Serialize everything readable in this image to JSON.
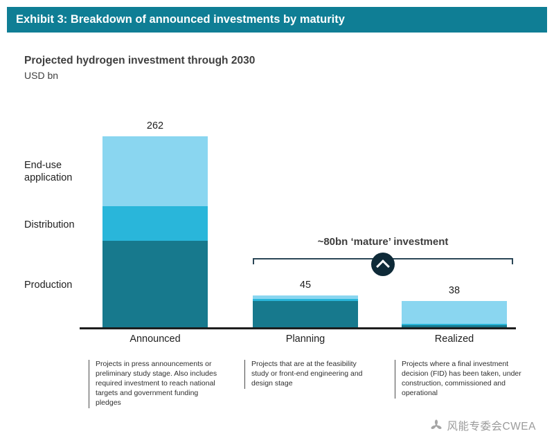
{
  "header": {
    "title": "Exhibit 3: Breakdown of announced investments by maturity"
  },
  "chart": {
    "title": "Projected hydrogen investment through 2030",
    "unit_label": "USD bn",
    "side_labels": [
      "End-use application",
      "Distribution",
      "Production"
    ],
    "annotation": "~80bn ‘mature’ investment"
  },
  "chart_data": {
    "type": "bar",
    "stacked": true,
    "title": "Projected hydrogen investment through 2030",
    "ylabel": "USD bn",
    "xlabel": "",
    "grid": false,
    "categories": [
      "Announced",
      "Planning",
      "Realized"
    ],
    "totals": [
      262,
      45,
      38
    ],
    "series": [
      {
        "name": "Production",
        "color": "#17798d",
        "values": [
          120,
          38,
          5
        ]
      },
      {
        "name": "Distribution",
        "color": "#29b6da",
        "values": [
          47,
          3,
          2
        ]
      },
      {
        "name": "End-use application",
        "color": "#8ad6f0",
        "values": [
          95,
          4,
          31
        ]
      }
    ],
    "annotation": "~80bn ‘mature’ investment",
    "annotation_span_categories": [
      "Planning",
      "Realized"
    ],
    "legend_position": "left-of-first-bar"
  },
  "descriptions": [
    "Projects in press announcements or preliminary study stage. Also includes required investment to reach national targets and government funding pledges",
    "Projects that are at the feasibility study or front-end engineering and design stage",
    "Projects where a final investment decision (FID) has been taken, under construction, commissioned and operational"
  ],
  "watermark": {
    "icon": "fan-icon",
    "text": "风能专委会CWEA"
  },
  "colors": {
    "header_bg": "#0f7e95",
    "axis": "#1d1d1d",
    "bracket": "#2a4656",
    "circle_bg": "#0e2a38",
    "watermark": "#9b9b9b"
  }
}
